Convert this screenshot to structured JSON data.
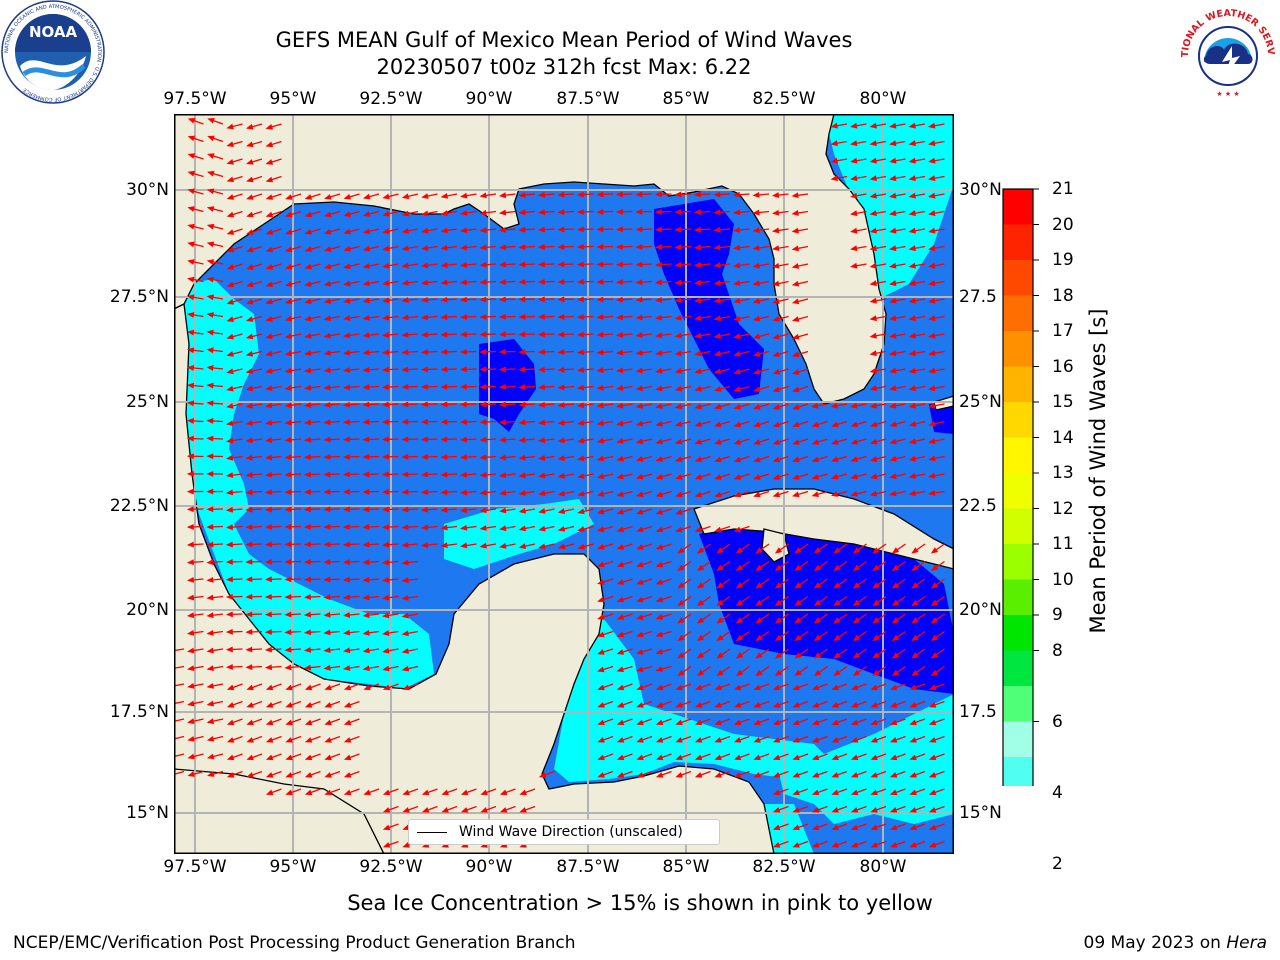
{
  "title_line1": "GEFS MEAN Gulf of Mexico Mean Period of Wind Waves",
  "title_line2": "20230507 t00z 312h fcst   Max: 6.22",
  "lon_ticks": [
    "97.5°W",
    "95°W",
    "92.5°W",
    "90°W",
    "87.5°W",
    "85°W",
    "82.5°W",
    "80°W"
  ],
  "lat_ticks_left": [
    "30°N",
    "27.5°N",
    "25°N",
    "22.5°N",
    "20°N",
    "17.5°N",
    "15°N"
  ],
  "lat_ticks_right": [
    "30°N",
    "27.5",
    "25°N",
    "22.5",
    "20°N",
    "17.5",
    "15°N"
  ],
  "colorbar": {
    "label": "Mean Period of Wind Waves [s]",
    "tick_labels": [
      "21",
      "20",
      "19",
      "18",
      "17",
      "16",
      "15",
      "14",
      "13",
      "12",
      "11",
      "10",
      "9",
      "8",
      "6",
      "4",
      "2"
    ],
    "colors": [
      "#ff0000",
      "#ff2400",
      "#ff4800",
      "#ff6e00",
      "#ff9000",
      "#ffb400",
      "#ffd800",
      "#fff600",
      "#f0ff00",
      "#d2ff00",
      "#9cff00",
      "#5aee00",
      "#00e600",
      "#00e640",
      "#50ff78",
      "#a0ffe6",
      "#50fff0",
      "#00ffff",
      "#00d2ff",
      "#0078ff",
      "#0000ff"
    ]
  },
  "legend_label": "Wind Wave Direction (unscaled)",
  "sea_ice_note": "Sea Ice Concentration > 15% is shown in pink to yellow",
  "footer_left": "NCEP/EMC/Verification Post Processing Product Generation Branch",
  "footer_right_date": "09 May 2023 on ",
  "footer_right_host": "Hera",
  "logos": {
    "left": "noaa-logo",
    "right": "nws-logo",
    "noaa_text": "NOAA",
    "nws_text": "NATIONAL WEATHER SERVICE",
    "noaa_ring_text": "NATIONAL OCEANIC AND ATMOSPHERIC ADMINISTRATION · U.S. DEPARTMENT OF COMMERCE"
  },
  "map_colors": {
    "land": "#efedda",
    "water_2_4": "#1e78f0",
    "water_4_6": "#00ffff",
    "water_lt_2": "#0000ff",
    "grid": "#b4b4b4",
    "arrow": "#ff0000"
  }
}
